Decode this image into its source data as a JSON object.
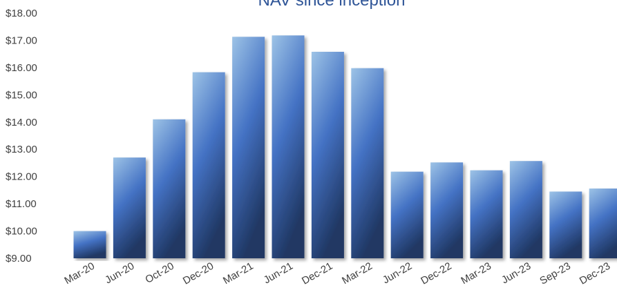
{
  "chart_data": {
    "type": "bar",
    "title": "NAV since inception",
    "xlabel": "",
    "ylabel": "",
    "categories": [
      "Mar-20",
      "Jun-20",
      "Oct-20",
      "Dec-20",
      "Mar-21",
      "Jun-21",
      "Dec-21",
      "Mar-22",
      "Jun-22",
      "Dec-22",
      "Mar-23",
      "Jun-23",
      "Sep-23",
      "Dec-23"
    ],
    "values": [
      10.0,
      12.7,
      14.1,
      15.83,
      17.13,
      17.18,
      16.58,
      15.98,
      12.18,
      12.52,
      12.23,
      12.57,
      11.45,
      11.56
    ],
    "ylim": [
      9,
      18
    ],
    "yticks": [
      "$9.00",
      "$10.00",
      "$11.00",
      "$12.00",
      "$13.00",
      "$14.00",
      "$15.00",
      "$16.00",
      "$17.00",
      "$18.00"
    ],
    "grid": false,
    "legend": "none",
    "colors": {
      "bar_light": "#9dc3e6",
      "bar_mid": "#4472c4",
      "bar_dark": "#203864"
    }
  }
}
